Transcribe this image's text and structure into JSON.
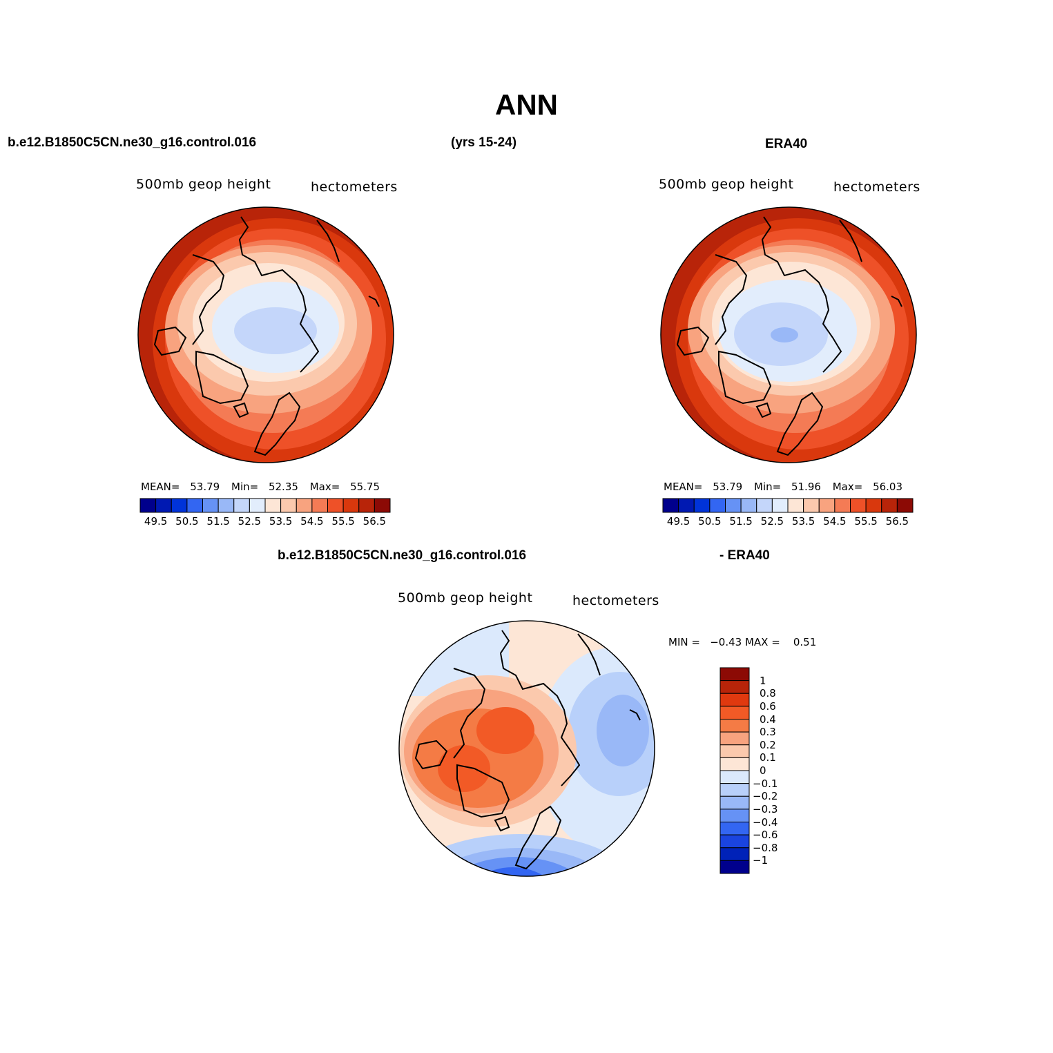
{
  "title": "ANN",
  "top_left": {
    "case": "b.e12.B1850C5CN.ne30_g16.control.016",
    "years": "(yrs 15-24)",
    "variable": "500mb geop height",
    "units": "hectometers",
    "stats": {
      "mean_label": "MEAN=",
      "mean": "53.79",
      "min_label": "Min=",
      "min": "52.35",
      "max_label": "Max=",
      "max": "55.75"
    }
  },
  "top_right": {
    "case": "ERA40",
    "variable": "500mb geop height",
    "units": "hectometers",
    "stats": {
      "mean_label": "MEAN=",
      "mean": "53.79",
      "min_label": "Min=",
      "min": "51.96",
      "max_label": "Max=",
      "max": "56.03"
    }
  },
  "bottom": {
    "case_left": "b.e12.B1850C5CN.ne30_g16.control.016",
    "case_right": "- ERA40",
    "variable": "500mb geop height",
    "units": "hectometers",
    "minmax": "MIN =   −0.43 MAX =    0.51"
  },
  "abs_colorbar": {
    "colors": [
      "#00008c",
      "#0019b2",
      "#0033d9",
      "#3366f2",
      "#6692f5",
      "#99b8f7",
      "#c4d6fa",
      "#e2edfc",
      "#fde6d6",
      "#fbc9ad",
      "#f8a37f",
      "#f47b55",
      "#ee5128",
      "#d9380d",
      "#b82409",
      "#8c0a05"
    ],
    "labels": [
      "49.5",
      "50.5",
      "51.5",
      "52.5",
      "53.5",
      "54.5",
      "55.5",
      "56.5"
    ]
  },
  "diff_colorbar": {
    "colors": [
      "#8c0a05",
      "#b82409",
      "#e0390f",
      "#f25a26",
      "#f47b45",
      "#f8a37f",
      "#fbc9ad",
      "#fde6d6",
      "#dbe9fc",
      "#b8d0fa",
      "#99b8f7",
      "#6692f5",
      "#3366f2",
      "#1a44e0",
      "#0022b8",
      "#00008c"
    ],
    "labels": [
      "1",
      "0.8",
      "0.6",
      "0.4",
      "0.3",
      "0.2",
      "0.1",
      "0",
      "−0.1",
      "−0.2",
      "−0.3",
      "−0.4",
      "−0.6",
      "−0.8",
      "−1"
    ]
  }
}
